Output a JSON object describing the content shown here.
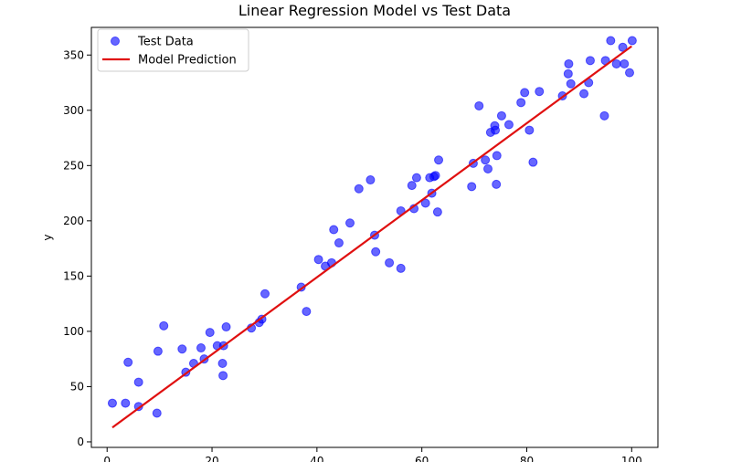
{
  "chart_data": {
    "type": "scatter",
    "title": "Linear Regression Model vs Test Data",
    "xlabel": "",
    "ylabel": "y",
    "xlim": [
      -3,
      105
    ],
    "ylim": [
      -5,
      375
    ],
    "xticks": [
      0,
      20,
      40,
      60,
      80,
      100
    ],
    "yticks": [
      0,
      50,
      100,
      150,
      200,
      250,
      300,
      350
    ],
    "grid": false,
    "legend_position": "upper-left",
    "series": [
      {
        "name": "Test Data",
        "kind": "scatter",
        "color": "#0000ff",
        "points": [
          [
            1,
            35
          ],
          [
            3.5,
            35
          ],
          [
            4,
            72
          ],
          [
            6,
            54
          ],
          [
            6,
            32
          ],
          [
            9.5,
            26
          ],
          [
            9.7,
            82
          ],
          [
            10.8,
            105
          ],
          [
            14.3,
            84
          ],
          [
            15,
            63
          ],
          [
            16.5,
            71
          ],
          [
            17.9,
            85
          ],
          [
            18.5,
            75
          ],
          [
            19.6,
            99
          ],
          [
            21,
            87
          ],
          [
            22,
            71
          ],
          [
            22.1,
            60
          ],
          [
            22.2,
            87
          ],
          [
            22.7,
            104
          ],
          [
            27.5,
            103
          ],
          [
            29,
            108
          ],
          [
            29.5,
            111
          ],
          [
            30.1,
            134
          ],
          [
            37,
            140
          ],
          [
            38,
            118
          ],
          [
            40.3,
            165
          ],
          [
            41.6,
            159
          ],
          [
            42.8,
            162
          ],
          [
            43.2,
            192
          ],
          [
            44.2,
            180
          ],
          [
            46.3,
            198
          ],
          [
            48,
            229
          ],
          [
            50.2,
            237
          ],
          [
            51,
            187
          ],
          [
            51.2,
            172
          ],
          [
            53.8,
            162
          ],
          [
            56,
            157
          ],
          [
            56,
            209
          ],
          [
            58.1,
            232
          ],
          [
            58.5,
            211
          ],
          [
            59,
            239
          ],
          [
            60.7,
            216
          ],
          [
            61.5,
            239
          ],
          [
            61.9,
            225
          ],
          [
            62.3,
            240
          ],
          [
            62.6,
            241
          ],
          [
            63,
            208
          ],
          [
            63.2,
            255
          ],
          [
            69.5,
            231
          ],
          [
            69.8,
            252
          ],
          [
            70.9,
            304
          ],
          [
            72.1,
            255
          ],
          [
            72.6,
            247
          ],
          [
            73.1,
            280
          ],
          [
            73.9,
            286
          ],
          [
            74,
            282
          ],
          [
            74.2,
            233
          ],
          [
            74.3,
            259
          ],
          [
            75.2,
            295
          ],
          [
            76.6,
            287
          ],
          [
            78.9,
            307
          ],
          [
            79.6,
            316
          ],
          [
            80.5,
            282
          ],
          [
            81.2,
            253
          ],
          [
            82.4,
            317
          ],
          [
            86.8,
            313
          ],
          [
            87.9,
            333
          ],
          [
            88,
            342
          ],
          [
            88.4,
            324
          ],
          [
            90.9,
            315
          ],
          [
            91.8,
            325
          ],
          [
            92.1,
            345
          ],
          [
            94.8,
            295
          ],
          [
            95,
            345
          ],
          [
            96,
            363
          ],
          [
            97.1,
            342
          ],
          [
            98.3,
            357
          ],
          [
            98.6,
            342
          ],
          [
            99.6,
            334
          ],
          [
            100.1,
            363
          ]
        ]
      },
      {
        "name": "Model Prediction",
        "kind": "line",
        "color": "#e01010",
        "points": [
          [
            1,
            13
          ],
          [
            100,
            358
          ]
        ]
      }
    ]
  }
}
